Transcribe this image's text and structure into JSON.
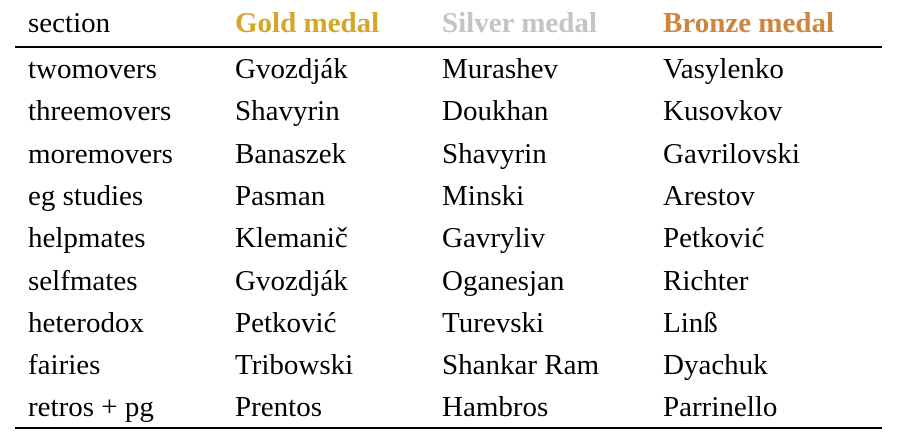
{
  "table": {
    "header": [
      "section",
      "Gold medal",
      "Silver medal",
      "Bronze medal"
    ],
    "rows": [
      [
        "twomovers",
        "Gvozdják",
        "Murashev",
        "Vasylenko"
      ],
      [
        "threemovers",
        "Shavyrin",
        "Doukhan",
        "Kusovkov"
      ],
      [
        "moremovers",
        "Banaszek",
        "Shavyrin",
        "Gavrilovski"
      ],
      [
        "eg studies",
        "Pasman",
        "Minski",
        "Arestov"
      ],
      [
        "helpmates",
        "Klemanič",
        "Gavryliv",
        "Petković"
      ],
      [
        "selfmates",
        "Gvozdják",
        "Oganesjan",
        "Richter"
      ],
      [
        "heterodox",
        "Petković",
        "Turevski",
        "Linß"
      ],
      [
        "fairies",
        "Tribowski",
        "Shankar Ram",
        "Dyachuk"
      ],
      [
        "retros + pg",
        "Prentos",
        "Hambros",
        "Parrinello"
      ]
    ]
  }
}
